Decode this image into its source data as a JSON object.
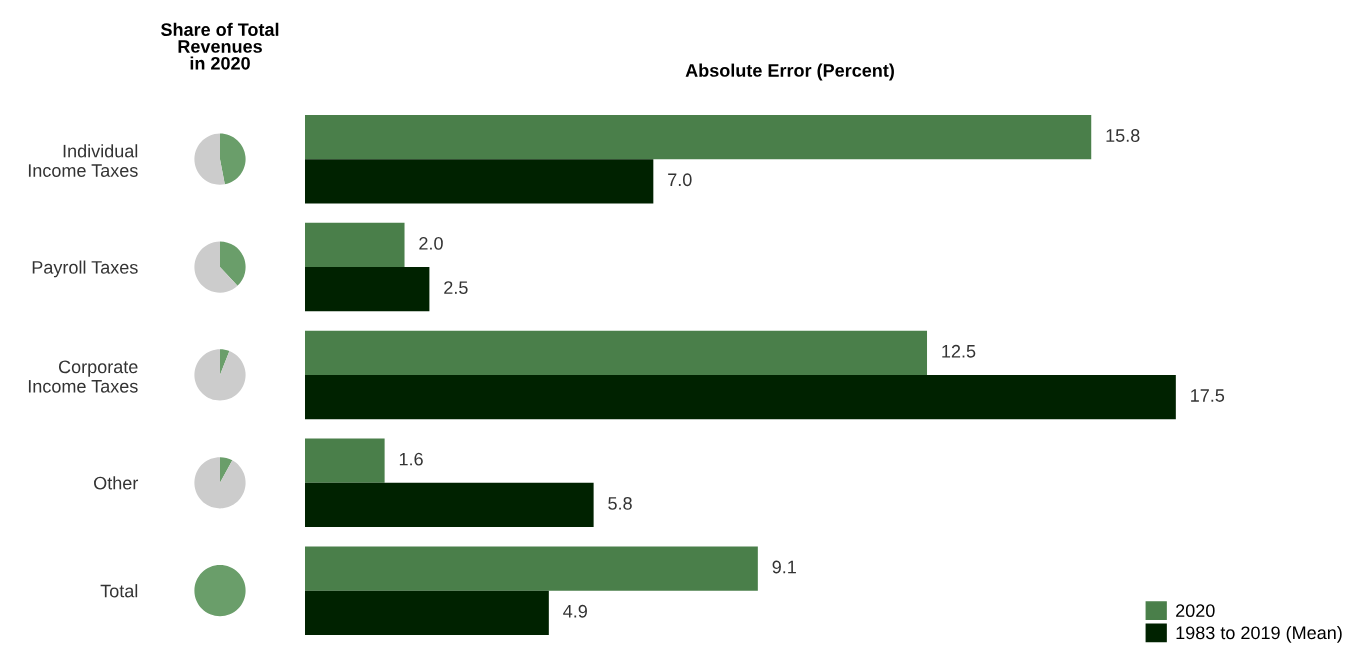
{
  "chart_data": [
    {
      "type": "pie",
      "title": "Share of Total\nRevenues\nin 2020",
      "categories": [
        null,
        null
      ],
      "values": [
        47,
        53
      ],
      "colors": [
        "#6a9e6a",
        "#cccccc"
      ]
    },
    {
      "type": "pie",
      "categories": [
        null,
        null
      ],
      "values": [
        38,
        62
      ],
      "colors": [
        "#6a9e6a",
        "#cccccc"
      ]
    },
    {
      "type": "pie",
      "categories": [
        null,
        null
      ],
      "values": [
        6,
        94
      ],
      "colors": [
        "#6a9e6a",
        "#cccccc"
      ]
    },
    {
      "type": "pie",
      "categories": [
        null,
        null
      ],
      "values": [
        8,
        92
      ],
      "colors": [
        "#6a9e6a",
        "#cccccc"
      ]
    },
    {
      "type": "pie",
      "categories": [
        null
      ],
      "values": [
        100
      ],
      "colors": [
        "#6a9e6a"
      ]
    },
    {
      "type": "bar",
      "orientation": "horizontal",
      "title": "Absolute Error (Percent)",
      "categories": [
        "Individual\nIncome Taxes",
        "Payroll Taxes",
        "Corporate\nIncome Taxes",
        "Other",
        "Total"
      ],
      "series": [
        {
          "name": "2020",
          "color": "#4a7f4a",
          "values": [
            15.8,
            2.0,
            12.5,
            1.6,
            9.1
          ],
          "value_labels": [
            "15.8",
            "2.0",
            "12.5",
            "1.6",
            "9.1"
          ]
        },
        {
          "name": "1983 to 2019 (Mean)",
          "color": "#002200",
          "values": [
            7.0,
            2.5,
            17.5,
            5.8,
            4.9
          ],
          "value_labels": [
            "7.0",
            "2.5",
            "17.5",
            "5.8",
            "4.9"
          ]
        }
      ],
      "legend": "bottom right",
      "tick_labels": "y"
    }
  ]
}
